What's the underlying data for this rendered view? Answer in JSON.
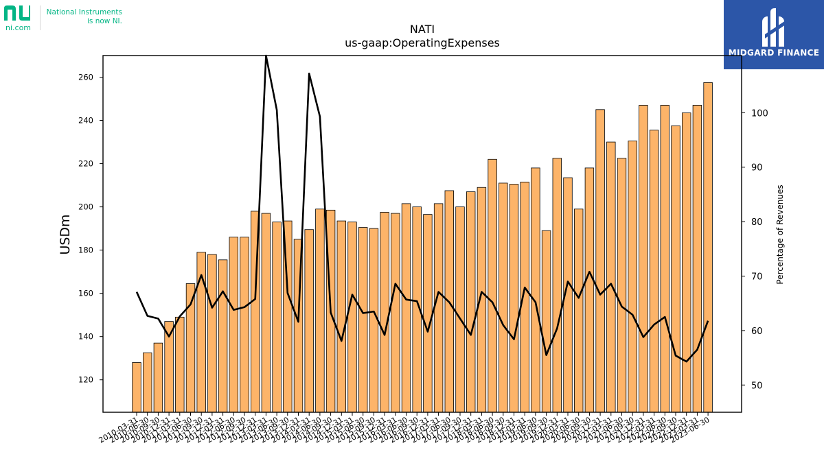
{
  "logo_left": {
    "domain": "ni.com",
    "line1": "National Instruments",
    "line2": "is now NI.",
    "brand_color": "#03b585"
  },
  "logo_right": {
    "name": "MIDGARD FINANCE",
    "background": "#2c56a8"
  },
  "chart_data": {
    "type": "bar",
    "title": "NATI",
    "subtitle": "us-gaap:OperatingExpenses",
    "ylabel": "USDm",
    "y2label": "Percentage of Revenues",
    "ylim": [
      105,
      270
    ],
    "y2lim": [
      45,
      110.5
    ],
    "yticks": [
      120,
      140,
      160,
      180,
      200,
      220,
      240,
      260
    ],
    "y2ticks": [
      50,
      60,
      70,
      80,
      90,
      100
    ],
    "bar_color": "#fdb469",
    "line_color": "#000000",
    "categories": [
      "2010-03-31",
      "2010-06-30",
      "2010-09-30",
      "2010-12-31",
      "2011-03-31",
      "2011-06-30",
      "2011-09-30",
      "2011-12-31",
      "2012-03-31",
      "2012-06-30",
      "2012-09-30",
      "2012-12-31",
      "2013-03-31",
      "2013-06-30",
      "2013-09-30",
      "2013-12-31",
      "2014-03-31",
      "2014-06-30",
      "2014-09-30",
      "2014-12-31",
      "2015-03-31",
      "2015-06-30",
      "2015-09-30",
      "2015-12-31",
      "2016-03-31",
      "2016-06-30",
      "2016-09-30",
      "2016-12-31",
      "2017-03-31",
      "2017-06-30",
      "2017-09-30",
      "2017-12-31",
      "2018-03-31",
      "2018-06-30",
      "2018-09-30",
      "2018-12-31",
      "2019-03-31",
      "2019-06-30",
      "2019-09-30",
      "2019-12-31",
      "2020-03-31",
      "2020-06-30",
      "2020-09-30",
      "2020-12-31",
      "2021-03-31",
      "2021-06-30",
      "2021-09-30",
      "2021-12-31",
      "2022-03-31",
      "2022-06-30",
      "2022-09-30",
      "2022-12-31",
      "2023-03-31",
      "2023-06-30"
    ],
    "series": [
      {
        "kind": "bar",
        "axis": "left",
        "values": [
          128,
          132.5,
          137,
          147,
          149,
          164.5,
          179,
          178,
          175.5,
          186,
          186,
          198,
          197,
          193,
          193.5,
          185,
          189.5,
          199,
          198.5,
          193.5,
          193,
          190.5,
          190,
          197.5,
          197,
          201.5,
          200,
          196.5,
          201.5,
          207.5,
          200,
          207,
          209,
          222,
          211,
          210.5,
          211.5,
          218,
          189,
          222.5,
          213.5,
          199,
          218,
          245,
          230,
          222.5,
          230.5,
          247,
          235.5,
          247,
          237.5,
          243.5,
          247,
          257.5
        ]
      },
      {
        "kind": "line",
        "axis": "right",
        "values": [
          67.1,
          62.7,
          62.2,
          58.9,
          62.6,
          64.8,
          70.2,
          64.2,
          67.2,
          63.8,
          64.3,
          65.8,
          110.5,
          100.5,
          66.9,
          61.6,
          107.2,
          99.3,
          63.3,
          58.1,
          66.6,
          63.2,
          63.5,
          59.2,
          68.6,
          65.7,
          65.4,
          59.8,
          67.1,
          65.2,
          62.2,
          59.2,
          67.1,
          65.2,
          61.0,
          58.4,
          67.9,
          65.2,
          55.5,
          60.4,
          69.0,
          66.0,
          70.8,
          66.6,
          68.6,
          64.4,
          62.9,
          58.8,
          61.1,
          62.5,
          55.4,
          54.3,
          56.5,
          61.8
        ]
      }
    ]
  }
}
